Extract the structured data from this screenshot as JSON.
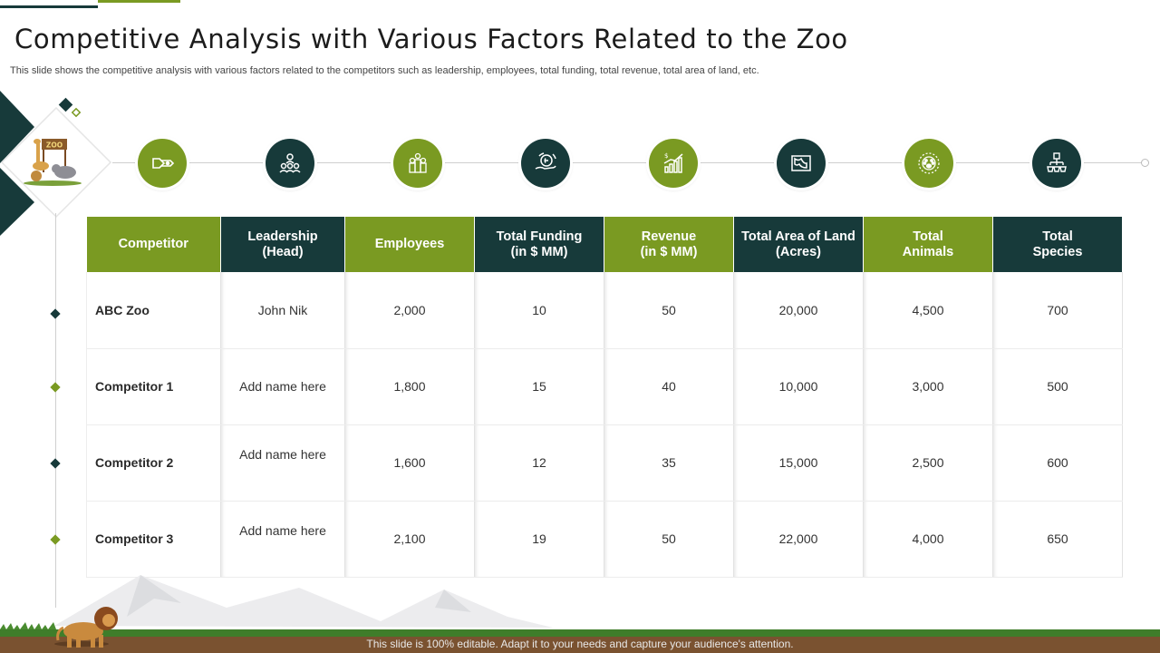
{
  "slide": {
    "title": "Competitive Analysis with Various Factors Related to the Zoo",
    "subtitle": "This slide shows the competitive analysis with various factors related  to the competitors such as leadership,  employees, total funding, total revenue, total area of land, etc.",
    "footer": "This slide is 100% editable. Adapt it to your needs and capture your audience's attention.",
    "zoo_sign": "ZOO"
  },
  "colors": {
    "green": "#7a9a22",
    "dark": "#173a3a"
  },
  "icons": [
    "competitor-icon",
    "leadership-icon",
    "employees-icon",
    "funding-icon",
    "revenue-icon",
    "land-area-icon",
    "animals-icon",
    "species-icon"
  ],
  "table": {
    "headers": [
      "Competitor",
      "Leadership\n(Head)",
      "Employees",
      "Total Funding\n(in $ MM)",
      "Revenue\n(in $ MM)",
      "Total Area of Land\n(Acres)",
      "Total\nAnimals",
      "Total\nSpecies"
    ],
    "rows": [
      {
        "competitor": "ABC Zoo",
        "leadership": "John Nik",
        "employees": "2,000",
        "funding": "10",
        "revenue": "50",
        "land": "20,000",
        "animals": "4,500",
        "species": "700"
      },
      {
        "competitor": "Competitor 1",
        "leadership": "Add name here",
        "employees": "1,800",
        "funding": "15",
        "revenue": "40",
        "land": "10,000",
        "animals": "3,000",
        "species": "500"
      },
      {
        "competitor": "Competitor 2",
        "leadership": "Add name here",
        "employees": "1,600",
        "funding": "12",
        "revenue": "35",
        "land": "15,000",
        "animals": "2,500",
        "species": "600"
      },
      {
        "competitor": "Competitor 3",
        "leadership": "Add name here",
        "employees": "2,100",
        "funding": "19",
        "revenue": "50",
        "land": "22,000",
        "animals": "4,000",
        "species": "650"
      }
    ]
  }
}
